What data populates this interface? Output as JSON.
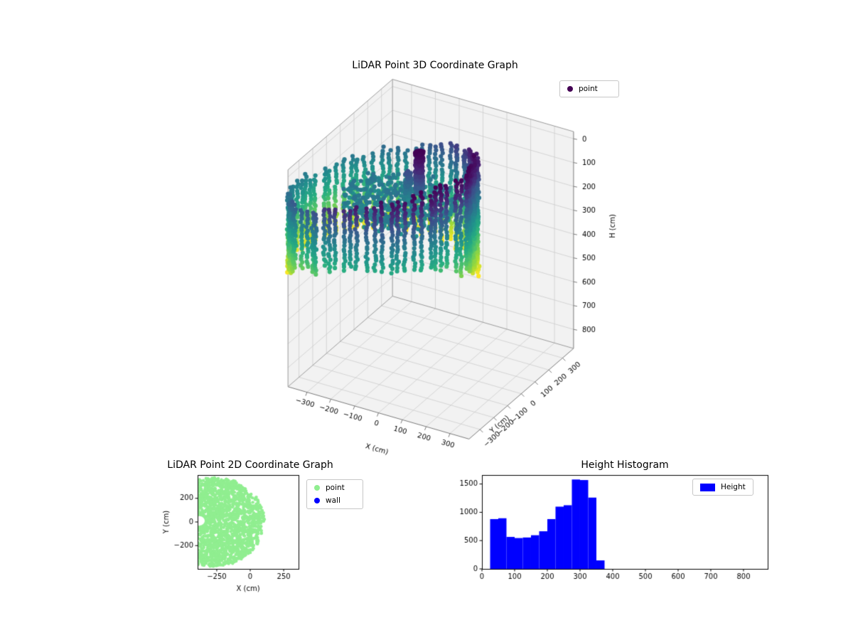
{
  "chart_data": [
    {
      "name": "lidar-3d",
      "type": "scatter",
      "projection": "3d",
      "title": "LiDAR Point 3D Coordinate Graph",
      "xlabel": "X (cm)",
      "ylabel": "Y (cm)",
      "zlabel": "H (cm)",
      "xlim": [
        -380,
        380
      ],
      "ylim": [
        -380,
        380
      ],
      "hlim": [
        -30,
        880
      ],
      "h_axis_inverted": true,
      "view": {
        "elev": 30,
        "azim": -60
      },
      "xtick_values": [
        -300,
        -200,
        -100,
        0,
        100,
        200,
        300
      ],
      "xtick_labels": [
        "−300",
        "−200",
        "−100",
        "0",
        "100",
        "200",
        "300"
      ],
      "ytick_values": [
        -300,
        -200,
        -100,
        0,
        100,
        200,
        300
      ],
      "ytick_labels": [
        "−300",
        "−200",
        "−100",
        "0",
        "100",
        "200",
        "300"
      ],
      "htick_values": [
        0,
        100,
        200,
        300,
        400,
        500,
        600,
        700,
        800
      ],
      "htick_labels": [
        "0",
        "100",
        "200",
        "300",
        "400",
        "500",
        "600",
        "700",
        "800"
      ],
      "legend_items": [
        {
          "label": "point",
          "color": "#440154",
          "shape": "dot"
        }
      ],
      "colormap": "viridis",
      "color_value_range_cm": [
        0,
        520
      ],
      "cloud": {
        "ring_center_cm": [
          -180,
          -40
        ],
        "ring_radius_cm": 340,
        "columns": 72,
        "column_point_step_cm": 13,
        "wall_top_cm": {
          "min": 0,
          "max": 235
        },
        "wall_bottom_cm": {
          "min": 310,
          "max": 520
        },
        "floor": {
          "center_cm": [
            -140,
            0
          ],
          "radius_cm": 210,
          "height_cm": 230,
          "height_spread_cm": 35,
          "count": 470
        },
        "obstacles": [
          {
            "center_cm": [
              -60,
              20
            ],
            "radius_cm": 16,
            "height_range_cm": [
              0,
              175
            ],
            "count": 260
          },
          {
            "center_cm": [
              -130,
              60
            ],
            "radius_cm": 12,
            "height_range_cm": [
              120,
              260
            ],
            "count": 90
          }
        ]
      }
    },
    {
      "name": "lidar-2d",
      "type": "scatter",
      "title": "LiDAR Point 2D Coordinate Graph",
      "xlabel": "X (cm)",
      "ylabel": "Y (cm)",
      "xlim": [
        -393,
        361
      ],
      "ylim": [
        -397,
        397
      ],
      "xtick_values": [
        -250,
        0,
        250
      ],
      "xtick_labels": [
        "−250",
        "0",
        "250"
      ],
      "ytick_values": [
        200,
        0,
        -200
      ],
      "ytick_labels": [
        "200",
        "0",
        "−200"
      ],
      "legend_items": [
        {
          "label": "point",
          "color": "#90ee90",
          "shape": "dot"
        },
        {
          "label": "wall",
          "color": "#0000ff",
          "shape": "dot"
        }
      ],
      "point_region": {
        "shape": "disc",
        "center_cm": [
          -270,
          0
        ],
        "radius_cm": 375,
        "notch_center_cm": [
          -380,
          10
        ],
        "notch_radius_cm": 40,
        "point_count": 2600,
        "point_color": "#90ee90"
      }
    },
    {
      "name": "height-histogram",
      "type": "bar",
      "title": "Height Histogram",
      "legend_items": [
        {
          "label": "Height",
          "color": "#0000ff",
          "shape": "rect"
        }
      ],
      "color": "#0000ff",
      "bin_edges": [
        25,
        50,
        75,
        100,
        125,
        150,
        175,
        200,
        225,
        250,
        275,
        300,
        325,
        350,
        375
      ],
      "counts": [
        880,
        895,
        565,
        545,
        555,
        595,
        665,
        880,
        1100,
        1125,
        1580,
        1570,
        1260,
        150
      ],
      "xlim": [
        0,
        874
      ],
      "ylim": [
        0,
        1659
      ],
      "xtick_values": [
        0,
        100,
        200,
        300,
        400,
        500,
        600,
        700,
        800
      ],
      "xtick_labels": [
        "0",
        "100",
        "200",
        "300",
        "400",
        "500",
        "600",
        "700",
        "800"
      ],
      "ytick_values": [
        0,
        500,
        1000,
        1500
      ],
      "ytick_labels": [
        "0",
        "500",
        "1000",
        "1500"
      ]
    }
  ]
}
